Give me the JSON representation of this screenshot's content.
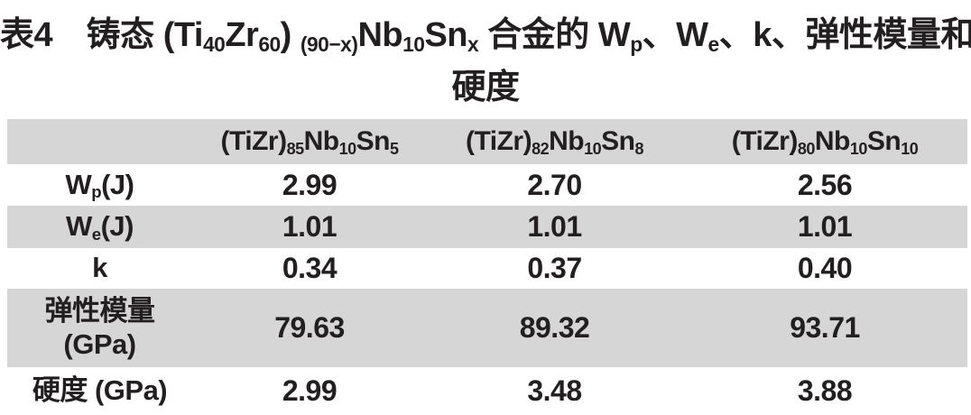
{
  "colors": {
    "shade": "#d6d6d6",
    "text": "#231f20",
    "background": "#ffffff"
  },
  "title": {
    "line1": [
      {
        "t": "表4　铸态 ("
      },
      {
        "t": "Ti"
      },
      {
        "t": "40",
        "sub": true
      },
      {
        "t": "Zr"
      },
      {
        "t": "60",
        "sub": true
      },
      {
        "t": ") "
      },
      {
        "t": "(90−x)",
        "sub": true
      },
      {
        "t": "Nb"
      },
      {
        "t": "10",
        "sub": true
      },
      {
        "t": "Sn"
      },
      {
        "t": "x",
        "sub": true
      },
      {
        "t": " 合金的 W"
      },
      {
        "t": "p",
        "sub": true
      },
      {
        "t": "、W"
      },
      {
        "t": "e",
        "sub": true
      },
      {
        "t": "、k、弹性模量和"
      }
    ],
    "line2": "硬度"
  },
  "table": {
    "columns": [
      [
        {
          "t": "(TiZr)"
        },
        {
          "t": "85",
          "sub": true
        },
        {
          "t": "Nb"
        },
        {
          "t": "10",
          "sub": true
        },
        {
          "t": "Sn"
        },
        {
          "t": "5",
          "sub": true
        }
      ],
      [
        {
          "t": "(TiZr)"
        },
        {
          "t": "82",
          "sub": true
        },
        {
          "t": "Nb"
        },
        {
          "t": "10",
          "sub": true
        },
        {
          "t": "Sn"
        },
        {
          "t": "8",
          "sub": true
        }
      ],
      [
        {
          "t": "(TiZr)"
        },
        {
          "t": "80",
          "sub": true
        },
        {
          "t": "Nb"
        },
        {
          "t": "10",
          "sub": true
        },
        {
          "t": "Sn"
        },
        {
          "t": "10",
          "sub": true
        }
      ]
    ],
    "rows": [
      {
        "label": [
          {
            "t": "W"
          },
          {
            "t": "p",
            "sub": true
          },
          {
            "t": "(J)"
          }
        ],
        "values": [
          "2.99",
          "2.70",
          "2.56"
        ]
      },
      {
        "label": [
          {
            "t": "W"
          },
          {
            "t": "e",
            "sub": true
          },
          {
            "t": "(J)"
          }
        ],
        "values": [
          "1.01",
          "1.01",
          "1.01"
        ]
      },
      {
        "label": [
          {
            "t": "k"
          }
        ],
        "values": [
          "0.34",
          "0.37",
          "0.40"
        ]
      },
      {
        "label": [
          {
            "t": "弹性模量"
          },
          {
            "br": true
          },
          {
            "t": "(GPa)"
          }
        ],
        "values": [
          "79.63",
          "89.32",
          "93.71"
        ]
      },
      {
        "label": [
          {
            "t": "硬度 (GPa)"
          }
        ],
        "values": [
          "2.99",
          "3.48",
          "3.88"
        ]
      }
    ]
  }
}
